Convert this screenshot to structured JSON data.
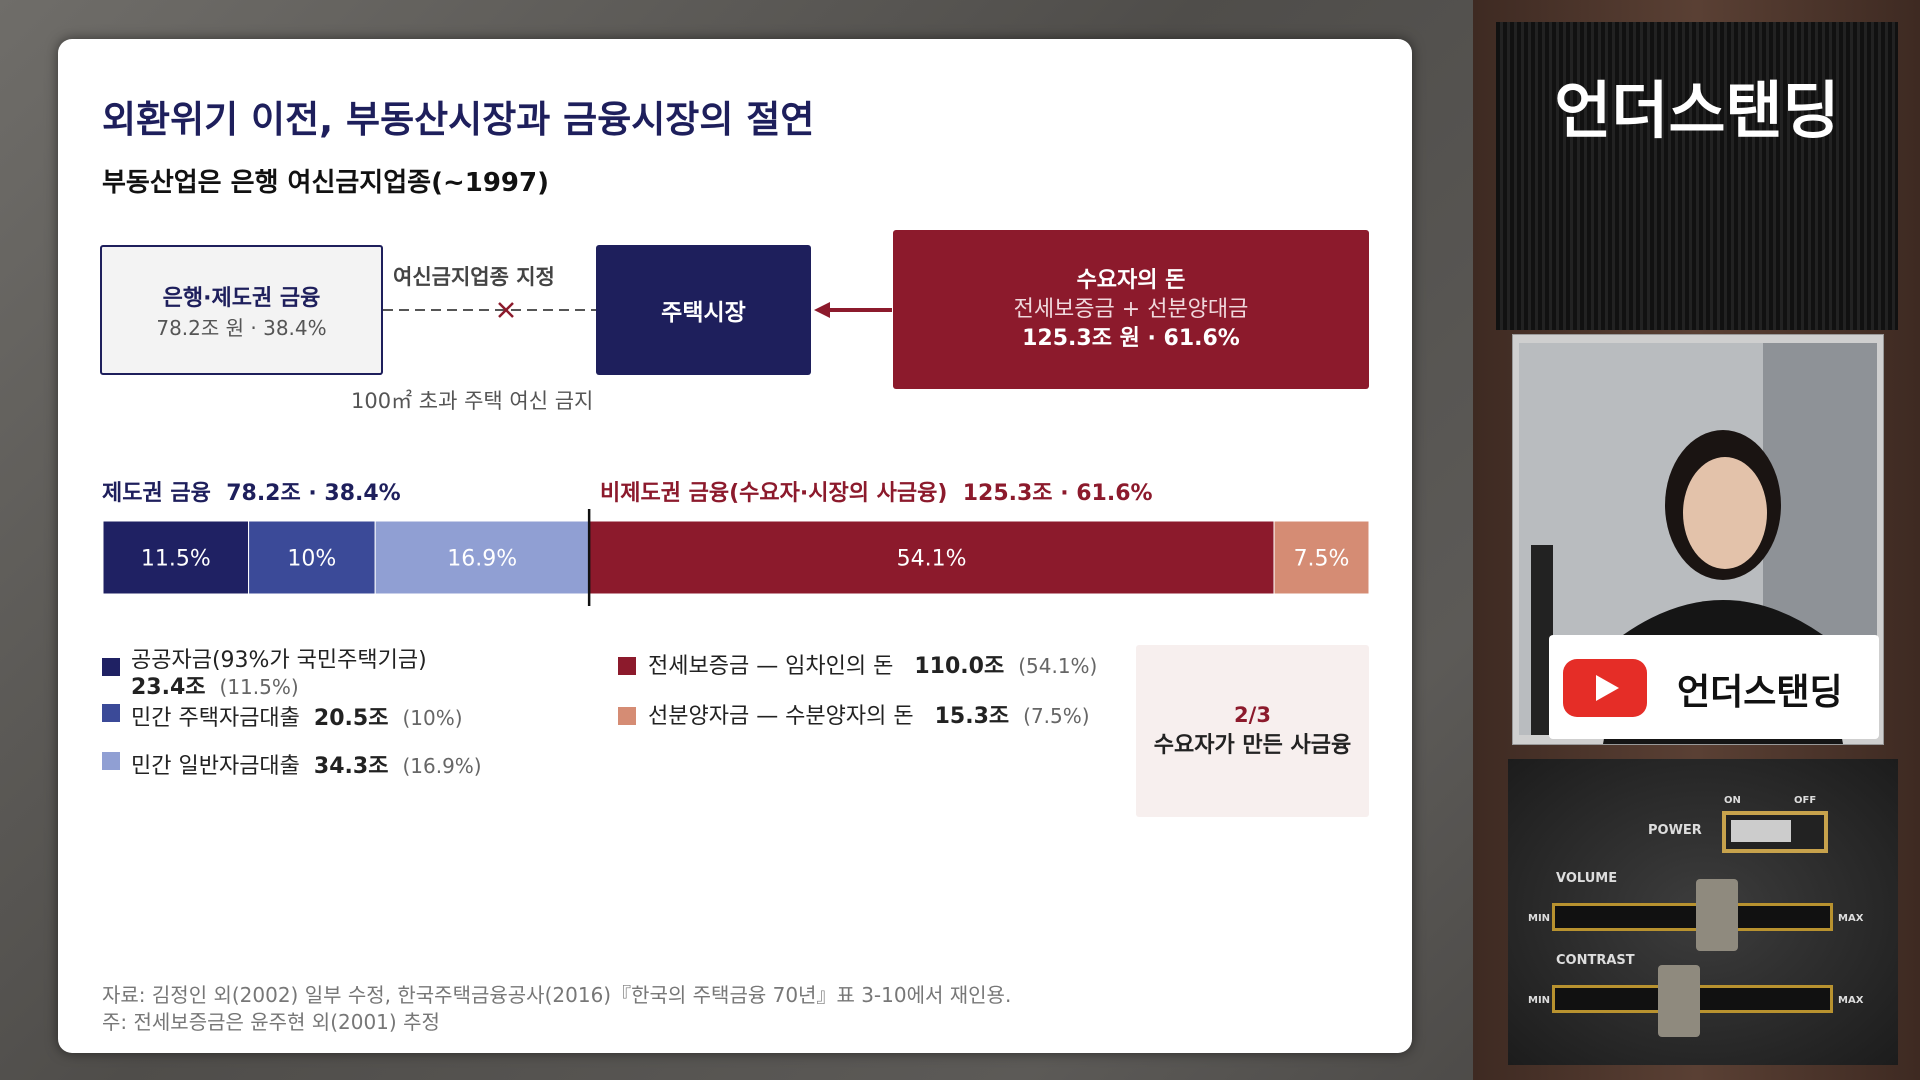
{
  "slide": {
    "title": "외환위기 이전, 부동산시장과 금융시장의 절연",
    "subtitle": "부동산업은 은행 여신금지업종(~1997)",
    "diagram": {
      "bank_box": {
        "title": "은행·제도권 금융",
        "detail": "78.2조 원 · 38.4%"
      },
      "link_label": "여신금지업종 지정",
      "restriction_note": "100㎡ 초과 주택 여신 금지",
      "market_box": "주택시장",
      "demand_box": {
        "title": "수요자의 돈",
        "detail": "전세보증금 + 선분양대금",
        "amount": "125.3조 원 · 61.6%"
      }
    },
    "summary": {
      "left": {
        "label": "제도권 금융",
        "amount": "78.2조 · 38.4%"
      },
      "right": {
        "label": "비제도권 금융(수요자·시장의 사금융)",
        "amount": "125.3조 · 61.6%"
      }
    },
    "bar": {
      "values": [
        11.5,
        10,
        16.9,
        54.1,
        7.5
      ],
      "value_labels": [
        "11.5%",
        "10%",
        "16.9%",
        "54.1%",
        "7.5%"
      ],
      "colors": [
        "#1f2163",
        "#3b4a98",
        "#909fd3",
        "#8c1a2c",
        "#d58c74"
      ]
    },
    "legend": [
      {
        "label": "공공자금(93%가 국민주택기금)",
        "amount": "23.4조",
        "share": "(11.5%)"
      },
      {
        "label": "민간 주택자금대출",
        "amount": "20.5조",
        "share": "(10%)"
      },
      {
        "label": "민간 일반자금대출",
        "amount": "34.3조",
        "share": "(16.9%)"
      },
      {
        "label": "전세보증금 — 임차인의 돈",
        "amount": "110.0조",
        "share": "(54.1%)"
      },
      {
        "label": "선분양자금 — 수분양자의 돈",
        "amount": "15.3조",
        "share": "(7.5%)"
      }
    ],
    "callout": {
      "ratio": "2/3",
      "text": "수요자가 만든 사금융"
    },
    "notes": [
      "자료: 김정인 외(2002) 일부 수정, 한국주택금융공사(2016)『한국의 주택금융 70년』표 3-10에서 재인용.",
      "주: 전세보증금은 윤주현 외(2001) 추정"
    ]
  },
  "sidebar": {
    "brand": "언더스탠딩",
    "cam_brand": "언더스탠딩",
    "panel": {
      "power": "POWER",
      "on": "ON",
      "off": "OFF",
      "volume": "VOLUME",
      "contrast": "CONTRAST",
      "min": "MIN",
      "max": "MAX"
    }
  }
}
